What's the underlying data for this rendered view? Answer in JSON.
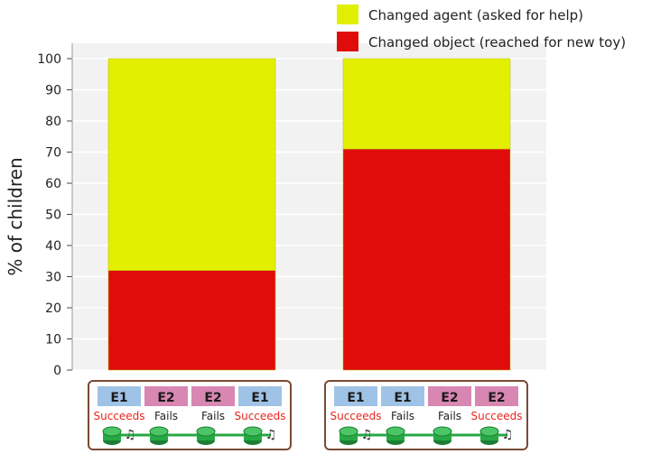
{
  "chart_data": {
    "type": "bar",
    "stacked": true,
    "categories": [
      "E1 Succeeds, E2 Fails, E2 Fails, E1 Succeeds",
      "E1 Succeeds, E1 Fails, E2 Fails, E2 Succeeds"
    ],
    "series": [
      {
        "name": "Changed object (reached for new toy)",
        "color": "#e00c0c",
        "values": [
          32,
          71
        ]
      },
      {
        "name": "Changed agent (asked for help)",
        "color": "#e2ef00",
        "values": [
          68,
          29
        ]
      }
    ],
    "ylabel": "% of children",
    "ylim": [
      0,
      100
    ],
    "yticks": [
      "0",
      "10",
      "20",
      "30",
      "40",
      "50",
      "60",
      "70",
      "80",
      "90",
      "100"
    ],
    "grid": true,
    "legend_position": "top-right"
  },
  "legend": {
    "items": [
      {
        "label": "Changed agent (asked for help)",
        "color": "#e2ef00"
      },
      {
        "label": "Changed object (reached for new toy)",
        "color": "#e00c0c"
      }
    ]
  },
  "scenarios": [
    {
      "steps": [
        {
          "agent": "E1",
          "outcome": "Succeeds",
          "success": true
        },
        {
          "agent": "E2",
          "outcome": "Fails",
          "success": false
        },
        {
          "agent": "E2",
          "outcome": "Fails",
          "success": false
        },
        {
          "agent": "E1",
          "outcome": "Succeeds",
          "success": true
        }
      ]
    },
    {
      "steps": [
        {
          "agent": "E1",
          "outcome": "Succeeds",
          "success": true
        },
        {
          "agent": "E1",
          "outcome": "Fails",
          "success": false
        },
        {
          "agent": "E2",
          "outcome": "Fails",
          "success": false
        },
        {
          "agent": "E2",
          "outcome": "Succeeds",
          "success": true
        }
      ]
    }
  ],
  "colors": {
    "E1": "#9fc3e6",
    "E2": "#d886b2",
    "succeeds_text": "#e8251c",
    "fails_text": "#222222",
    "toy": "#27a844",
    "plot_background": "#f2f2f2",
    "gridline": "#ffffff",
    "box_border": "#7a4b34"
  }
}
